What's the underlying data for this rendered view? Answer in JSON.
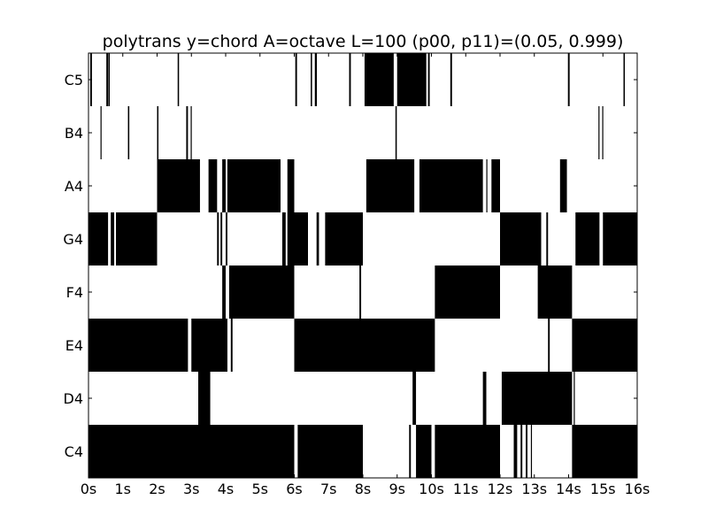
{
  "chart_data": {
    "type": "heatmap",
    "title": "polytrans y=chord A=octave L=100 (p00, p11)=(0.05, 0.999)",
    "xlabel": "",
    "ylabel": "",
    "xlim": [
      0,
      16
    ],
    "xticks": [
      "0s",
      "1s",
      "2s",
      "3s",
      "4s",
      "5s",
      "6s",
      "7s",
      "8s",
      "9s",
      "10s",
      "11s",
      "12s",
      "13s",
      "14s",
      "15s",
      "16s"
    ],
    "rows": [
      "C5",
      "B4",
      "A4",
      "G4",
      "F4",
      "E4",
      "D4",
      "C4"
    ],
    "colors": {
      "on": "#000000",
      "off": "#ffffff"
    },
    "grid": false,
    "legend": "none",
    "series": [
      {
        "name": "C5",
        "on_intervals": [
          [
            0.05,
            0.1
          ],
          [
            0.52,
            0.57
          ],
          [
            0.58,
            0.62
          ],
          [
            2.6,
            2.64
          ],
          [
            6.03,
            6.08
          ],
          [
            6.48,
            6.52
          ],
          [
            6.6,
            6.66
          ],
          [
            7.6,
            7.65
          ],
          [
            8.05,
            8.9
          ],
          [
            9.0,
            9.85
          ],
          [
            9.9,
            9.95
          ],
          [
            10.55,
            10.6
          ],
          [
            13.98,
            14.03
          ],
          [
            15.6,
            15.64
          ]
        ]
      },
      {
        "name": "B4",
        "on_intervals": [
          [
            0.35,
            0.37
          ],
          [
            1.15,
            1.19
          ],
          [
            2.0,
            2.04
          ],
          [
            2.85,
            2.9
          ],
          [
            2.98,
            3.01
          ],
          [
            8.95,
            8.99
          ],
          [
            14.87,
            14.9
          ],
          [
            14.98,
            15.0
          ]
        ]
      },
      {
        "name": "A4",
        "on_intervals": [
          [
            2.0,
            3.25
          ],
          [
            3.5,
            3.75
          ],
          [
            3.9,
            4.0
          ],
          [
            4.05,
            5.6
          ],
          [
            5.8,
            6.0
          ],
          [
            8.1,
            9.5
          ],
          [
            9.65,
            11.5
          ],
          [
            11.6,
            11.62
          ],
          [
            11.75,
            12.0
          ],
          [
            13.75,
            13.95
          ]
        ]
      },
      {
        "name": "G4",
        "on_intervals": [
          [
            0.0,
            0.57
          ],
          [
            0.65,
            0.75
          ],
          [
            0.8,
            2.0
          ],
          [
            3.75,
            3.8
          ],
          [
            3.85,
            3.9
          ],
          [
            4.0,
            4.05
          ],
          [
            5.65,
            5.75
          ],
          [
            5.8,
            6.4
          ],
          [
            6.65,
            6.72
          ],
          [
            6.9,
            8.0
          ],
          [
            12.0,
            13.2
          ],
          [
            13.35,
            13.4
          ],
          [
            14.2,
            14.9
          ],
          [
            15.0,
            16.0
          ]
        ]
      },
      {
        "name": "F4",
        "on_intervals": [
          [
            3.9,
            4.0
          ],
          [
            4.1,
            6.0
          ],
          [
            7.9,
            7.95
          ],
          [
            10.1,
            12.0
          ],
          [
            13.1,
            14.1
          ]
        ]
      },
      {
        "name": "E4",
        "on_intervals": [
          [
            0.0,
            2.9
          ],
          [
            3.0,
            4.05
          ],
          [
            4.15,
            4.2
          ],
          [
            6.0,
            10.1
          ],
          [
            13.4,
            13.45
          ],
          [
            14.1,
            16.0
          ]
        ]
      },
      {
        "name": "D4",
        "on_intervals": [
          [
            3.2,
            3.55
          ],
          [
            9.45,
            9.55
          ],
          [
            11.5,
            11.6
          ],
          [
            12.05,
            14.1
          ],
          [
            14.15,
            14.17
          ]
        ]
      },
      {
        "name": "C4",
        "on_intervals": [
          [
            0.0,
            6.0
          ],
          [
            6.1,
            8.0
          ],
          [
            9.35,
            9.4
          ],
          [
            9.55,
            10.0
          ],
          [
            10.1,
            12.0
          ],
          [
            12.4,
            12.5
          ],
          [
            12.6,
            12.65
          ],
          [
            12.75,
            12.8
          ],
          [
            12.9,
            12.93
          ],
          [
            14.1,
            16.0
          ]
        ]
      }
    ]
  }
}
